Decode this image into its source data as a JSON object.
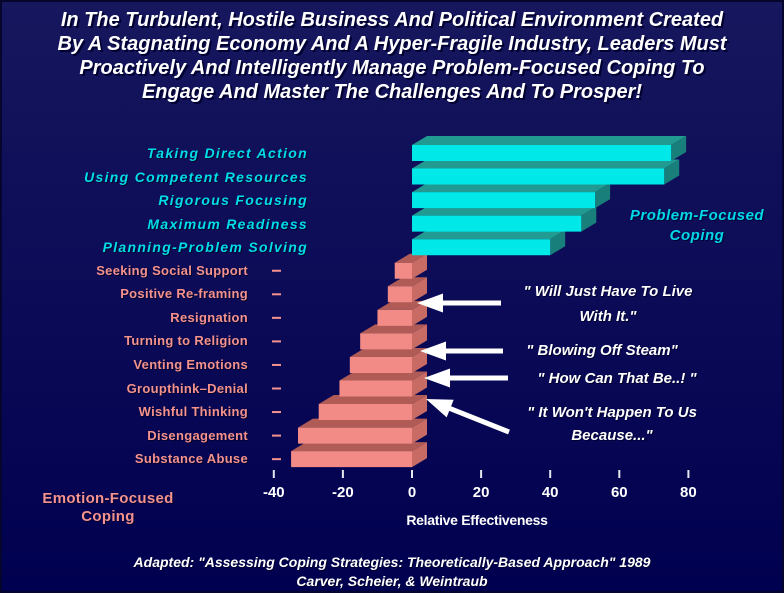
{
  "slide": {
    "title": "In The Turbulent, Hostile Business And Political Environment Created\nBy A Stagnating Economy And A Hyper-Fragile Industry, Leaders Must\nProactively And Intelligently Manage Problem-Focused Coping To\nEngage And Master The Challenges And To Prosper!",
    "attribution_line1": "Adapted: \"Assessing Coping Strategies: Theoretically-Based Approach\"  1989",
    "attribution_line2": "Carver, Scheier, & Weintraub"
  },
  "colors": {
    "background_top": "#17175e",
    "background_bottom": "#000050",
    "title_text": "#ffffff",
    "problem_bar_front": "#00e8e8",
    "problem_bar_top": "#219a92",
    "problem_bar_side": "#187f7b",
    "emotion_bar_front": "#f28b85",
    "emotion_bar_top": "#b05b56",
    "emotion_bar_side": "#c76b64",
    "problem_text": "#00dcea",
    "emotion_text": "#f4928d",
    "axis_tick": "#e6e6ee",
    "arrow": "#ffffff"
  },
  "chart_data": {
    "type": "bar",
    "orientation": "horizontal-3d",
    "title": "",
    "xlabel": "Relative Effectiveness",
    "ylabel": "",
    "x_ticks": [
      -40,
      -20,
      0,
      20,
      40,
      60,
      80
    ],
    "xlim": [
      -48,
      96
    ],
    "grid": false,
    "legend_position": "inline-labels",
    "series": [
      {
        "name": "Problem-Focused\nCoping",
        "items": [
          {
            "label": "Taking Direct Action",
            "value": 75
          },
          {
            "label": "Using Competent Resources",
            "value": 73
          },
          {
            "label": "Rigorous Focusing",
            "value": 53
          },
          {
            "label": "Maximum Readiness",
            "value": 49
          },
          {
            "label": "Planning-Problem Solving",
            "value": 40
          }
        ]
      },
      {
        "name": "Emotion-Focused\nCoping",
        "items": [
          {
            "label": "Seeking Social Support",
            "value": -5
          },
          {
            "label": "Positive Re-framing",
            "value": -7
          },
          {
            "label": "Resignation",
            "value": -10
          },
          {
            "label": "Turning to Religion",
            "value": -15
          },
          {
            "label": "Venting Emotions",
            "value": -18
          },
          {
            "label": "Groupthink–Denial",
            "value": -21
          },
          {
            "label": "Wishful Thinking",
            "value": -27
          },
          {
            "label": "Disengagement",
            "value": -33
          },
          {
            "label": "Substance Abuse",
            "value": -35
          }
        ]
      }
    ],
    "annotations": [
      {
        "text": "\" Will Just Have To Live\nWith It.\"",
        "points_to": "Resignation"
      },
      {
        "text": "\" Blowing Off Steam\"",
        "points_to": "Venting Emotions"
      },
      {
        "text": "\" How Can That Be..! \"",
        "points_to": "Groupthink–Denial"
      },
      {
        "text": "\" It Won't Happen To Us\nBecause...\"",
        "points_to": "Wishful Thinking"
      }
    ]
  }
}
